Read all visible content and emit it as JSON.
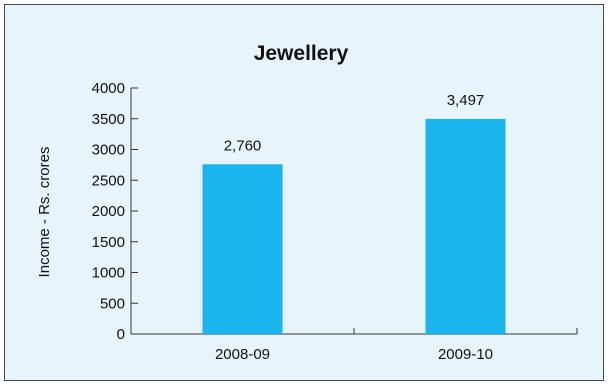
{
  "chart_data": {
    "type": "bar",
    "title": "Jewellery",
    "xlabel": "",
    "ylabel": "Income - Rs. crores",
    "categories": [
      "2008-09",
      "2009-10"
    ],
    "values": [
      2760,
      3497
    ],
    "data_labels": [
      "2,760",
      "3,497"
    ],
    "ylim": [
      0,
      4000
    ],
    "yticks": [
      0,
      500,
      1000,
      1500,
      2000,
      2500,
      3000,
      3500,
      4000
    ],
    "bar_color": "#1ab4ef",
    "background_color": "#e8f4fb",
    "grid": false,
    "legend": "none"
  }
}
